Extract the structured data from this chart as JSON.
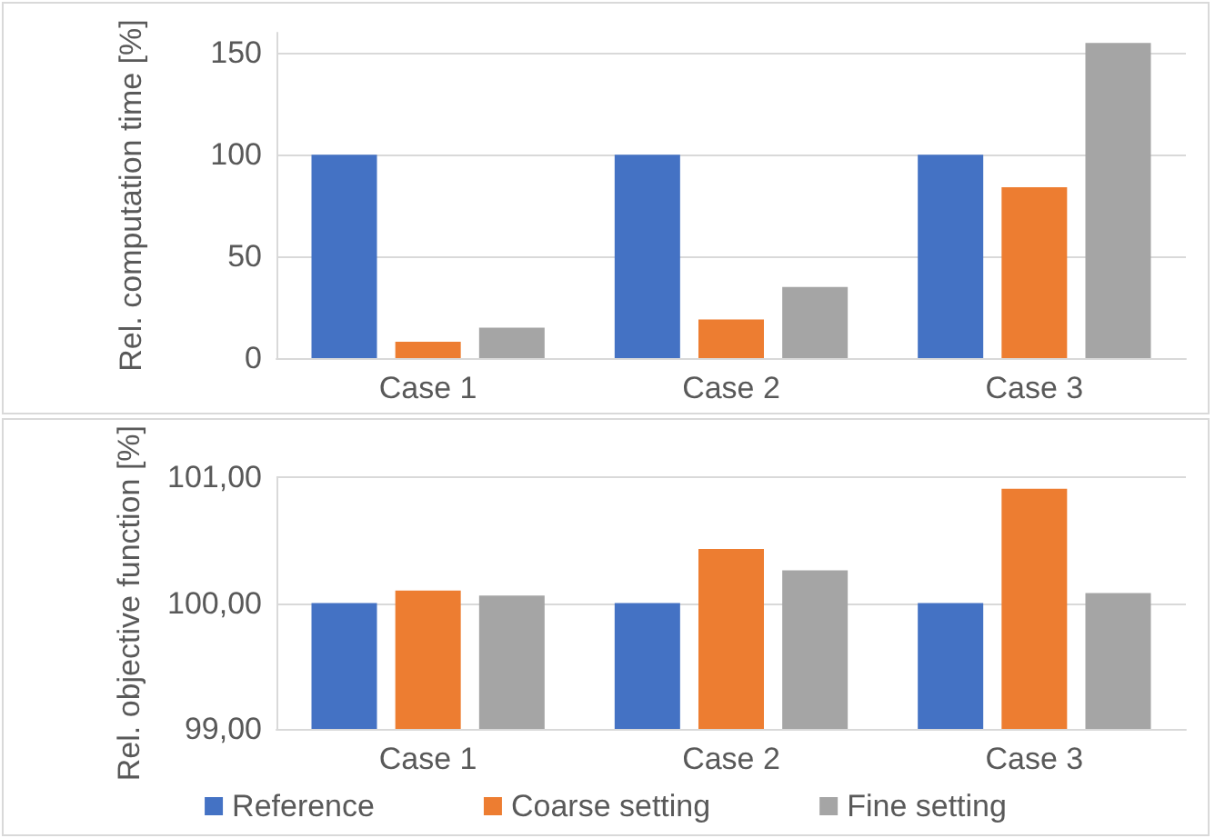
{
  "chart_data": [
    {
      "type": "bar",
      "categories": [
        "Case 1",
        "Case 2",
        "Case 3"
      ],
      "ylabel": "Rel. computation time [%]",
      "ylim": [
        0,
        160
      ],
      "yticks": [
        0,
        50,
        100,
        150
      ],
      "grid": "y",
      "legend": false,
      "series": [
        {
          "color": "#4472c4",
          "values": [
            100,
            100,
            100
          ]
        },
        {
          "color": "#ed7d31",
          "values": [
            8,
            19,
            84
          ]
        },
        {
          "color": "#a5a5a5",
          "values": [
            15,
            35,
            155
          ]
        }
      ]
    },
    {
      "type": "bar",
      "categories": [
        "Case 1",
        "Case 2",
        "Case 3"
      ],
      "ylabel": "Rel. objective function [%]",
      "ylim": [
        99,
        101
      ],
      "yticks": [
        {
          "value": 99,
          "label": "99,00"
        },
        {
          "value": 100,
          "label": "100,00"
        },
        {
          "value": 101,
          "label": "101,00"
        }
      ],
      "grid": "y",
      "legend": "bottom",
      "series": [
        {
          "name": "Reference",
          "color": "#4472c4",
          "values": [
            100,
            100,
            100
          ]
        },
        {
          "name": "Coarse setting",
          "color": "#ed7d31",
          "values": [
            100.1,
            100.43,
            100.91
          ]
        },
        {
          "name": "Fine setting",
          "color": "#a5a5a5",
          "values": [
            100.06,
            100.26,
            100.08
          ]
        }
      ]
    }
  ]
}
